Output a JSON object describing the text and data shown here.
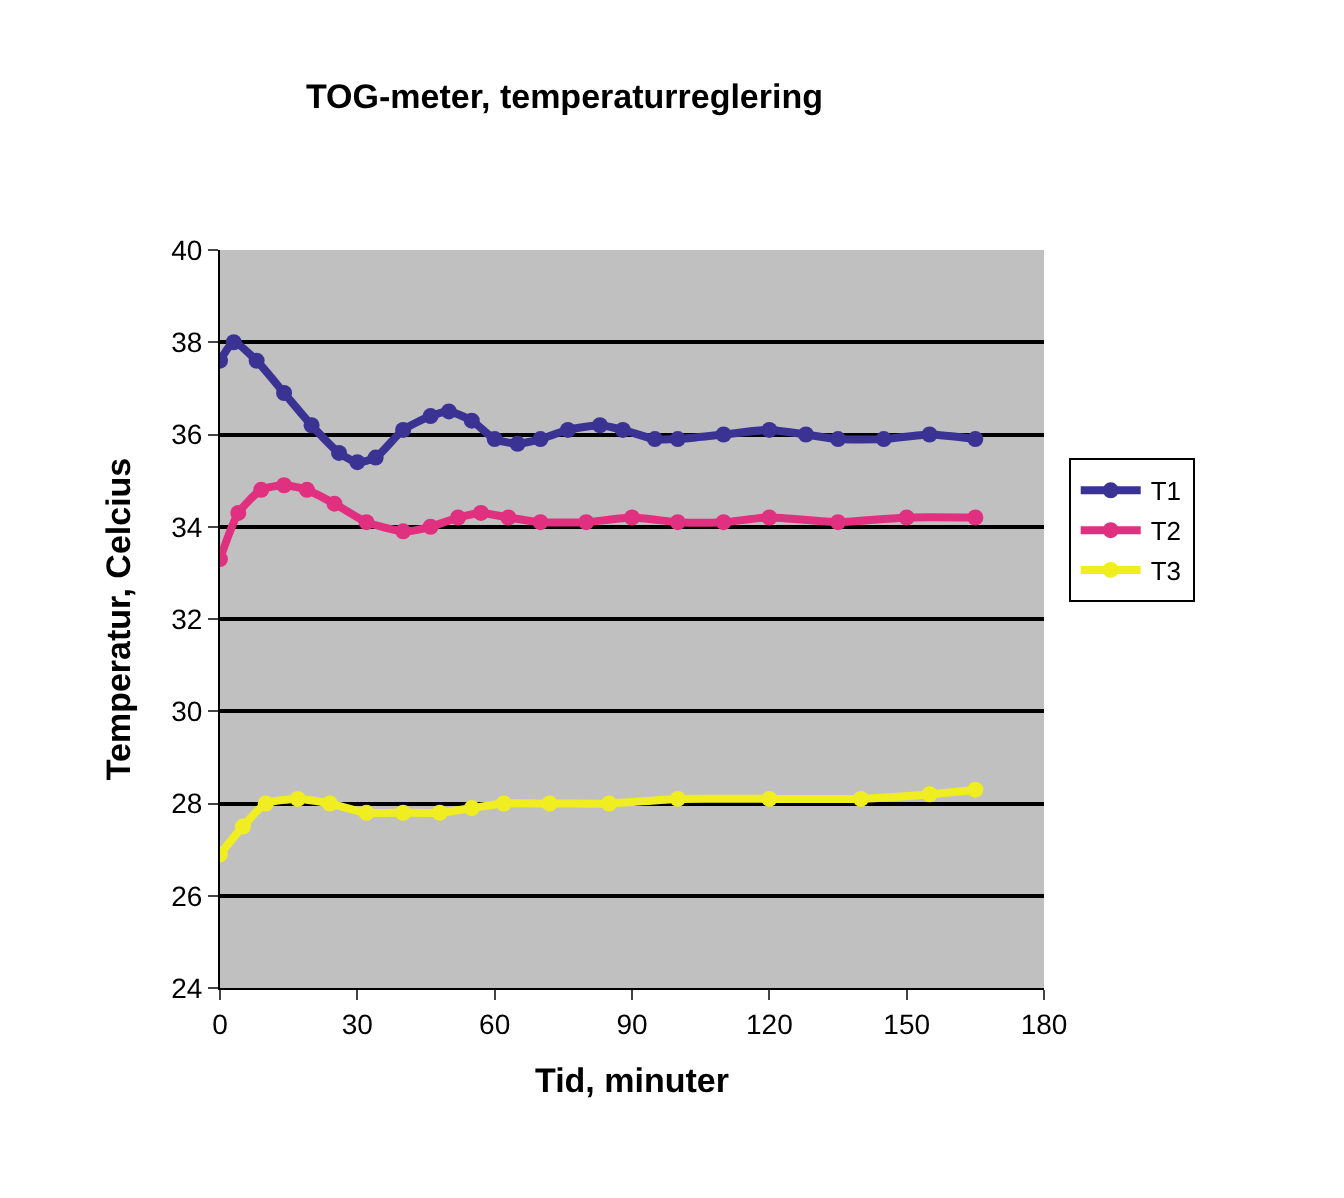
{
  "chart_data": {
    "type": "line",
    "title": "TOG-meter, temperaturreglering",
    "xlabel": "Tid, minuter",
    "ylabel": "Temperatur, Celcius",
    "xlim": [
      0,
      180
    ],
    "xticks": [
      0,
      30,
      60,
      90,
      120,
      150,
      180
    ],
    "ylim": [
      24,
      40
    ],
    "yticks": [
      24,
      26,
      28,
      30,
      32,
      34,
      36,
      38,
      40
    ],
    "grid": "y",
    "legend": "right",
    "marker": "circle",
    "line_style": "solid",
    "series": [
      {
        "name": "T1",
        "color": "#3a3393",
        "x": [
          0,
          3,
          8,
          14,
          20,
          26,
          30,
          34,
          40,
          46,
          50,
          55,
          60,
          65,
          70,
          76,
          83,
          88,
          95,
          100,
          110,
          120,
          128,
          135,
          145,
          155,
          165
        ],
        "values": [
          37.6,
          38.0,
          37.6,
          36.9,
          36.2,
          35.6,
          35.4,
          35.5,
          36.1,
          36.4,
          36.5,
          36.3,
          35.9,
          35.8,
          35.9,
          36.1,
          36.2,
          36.1,
          35.9,
          35.9,
          36.0,
          36.1,
          36.0,
          35.9,
          35.9,
          36.0,
          35.9
        ]
      },
      {
        "name": "T2",
        "color": "#e0307f",
        "x": [
          0,
          4,
          9,
          14,
          19,
          25,
          32,
          40,
          46,
          52,
          57,
          63,
          70,
          80,
          90,
          100,
          110,
          120,
          135,
          150,
          165
        ],
        "values": [
          33.3,
          34.3,
          34.8,
          34.9,
          34.8,
          34.5,
          34.1,
          33.9,
          34.0,
          34.2,
          34.3,
          34.2,
          34.1,
          34.1,
          34.2,
          34.1,
          34.1,
          34.2,
          34.1,
          34.2,
          34.2
        ]
      },
      {
        "name": "T3",
        "color": "#f0ee20",
        "x": [
          0,
          5,
          10,
          17,
          24,
          32,
          40,
          48,
          55,
          62,
          72,
          85,
          100,
          120,
          140,
          155,
          165
        ],
        "values": [
          26.9,
          27.5,
          28.0,
          28.1,
          28.0,
          27.8,
          27.8,
          27.8,
          27.9,
          28.0,
          28.0,
          28.0,
          28.1,
          28.1,
          28.1,
          28.2,
          28.3
        ]
      }
    ]
  }
}
